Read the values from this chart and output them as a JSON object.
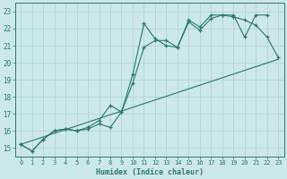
{
  "title": "",
  "xlabel": "Humidex (Indice chaleur)",
  "bg_color": "#cce8e8",
  "grid_color": "#b0d0d0",
  "line_color": "#2a7a6a",
  "xlim": [
    -0.5,
    23.5
  ],
  "ylim": [
    14.5,
    23.5
  ],
  "yticks": [
    15,
    16,
    17,
    18,
    19,
    20,
    21,
    22,
    23
  ],
  "xticks": [
    0,
    1,
    2,
    3,
    4,
    5,
    6,
    7,
    8,
    9,
    10,
    11,
    12,
    13,
    14,
    15,
    16,
    17,
    18,
    19,
    20,
    21,
    22,
    23
  ],
  "line_straight": {
    "x": [
      0,
      23
    ],
    "y": [
      15.2,
      20.2
    ]
  },
  "line_zigzag": {
    "x": [
      0,
      1,
      2,
      3,
      4,
      5,
      6,
      7,
      8,
      9,
      10,
      11,
      12,
      13,
      14,
      15,
      16,
      17,
      18,
      19,
      20,
      21,
      22
    ],
    "y": [
      15.2,
      14.8,
      15.5,
      16.0,
      16.1,
      16.0,
      16.2,
      16.6,
      17.5,
      17.1,
      19.3,
      22.3,
      21.4,
      21.0,
      20.9,
      22.5,
      22.1,
      22.8,
      22.8,
      22.8,
      21.5,
      22.8,
      22.8
    ]
  },
  "line_smooth": {
    "x": [
      0,
      1,
      2,
      3,
      4,
      5,
      6,
      7,
      8,
      9,
      10,
      11,
      12,
      13,
      14,
      15,
      16,
      17,
      18,
      19,
      20,
      21,
      22,
      23
    ],
    "y": [
      15.2,
      14.8,
      15.5,
      16.0,
      16.1,
      16.0,
      16.1,
      16.4,
      16.2,
      17.1,
      18.8,
      20.9,
      21.3,
      21.3,
      20.9,
      22.4,
      21.9,
      22.6,
      22.8,
      22.7,
      22.5,
      22.2,
      21.5,
      20.3
    ]
  }
}
